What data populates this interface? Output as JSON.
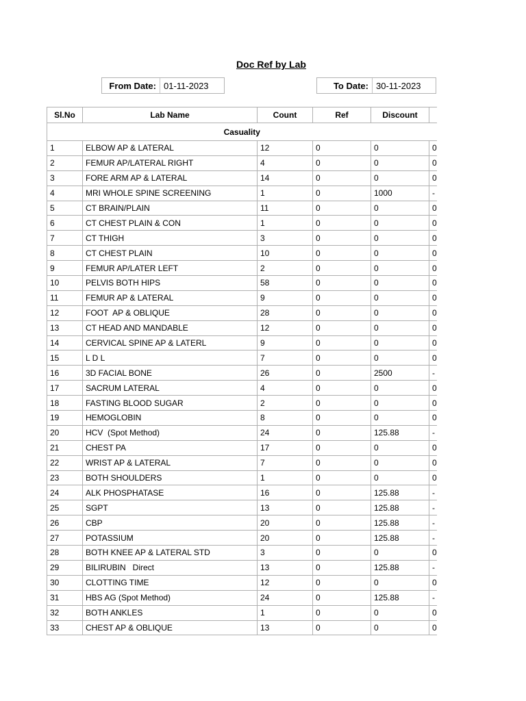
{
  "title": "Doc Ref by Lab",
  "filters": {
    "from_date_label": "From Date:",
    "from_date_value": "01-11-2023",
    "to_date_label": "To Date:",
    "to_date_value": "30-11-2023"
  },
  "table": {
    "columns": [
      "Sl.No",
      "Lab Name",
      "Count",
      "Ref",
      "Discount",
      ""
    ],
    "group_header": "Casuality",
    "rows": [
      [
        "1",
        "ELBOW AP & LATERAL",
        "12",
        "0",
        "0",
        "0"
      ],
      [
        "2",
        "FEMUR AP/LATERAL RIGHT",
        "4",
        "0",
        "0",
        "0"
      ],
      [
        "3",
        "FORE ARM AP & LATERAL",
        "14",
        "0",
        "0",
        "0"
      ],
      [
        "4",
        "MRI WHOLE SPINE SCREENING",
        "1",
        "0",
        "1000",
        "-"
      ],
      [
        "5",
        "CT BRAIN/PLAIN",
        "11",
        "0",
        "0",
        "0"
      ],
      [
        "6",
        "CT CHEST PLAIN & CON",
        "1",
        "0",
        "0",
        "0"
      ],
      [
        "7",
        "CT THIGH",
        "3",
        "0",
        "0",
        "0"
      ],
      [
        "8",
        "CT CHEST PLAIN",
        "10",
        "0",
        "0",
        "0"
      ],
      [
        "9",
        "FEMUR AP/LATER LEFT",
        "2",
        "0",
        "0",
        "0"
      ],
      [
        "10",
        "PELVIS BOTH HIPS",
        "58",
        "0",
        "0",
        "0"
      ],
      [
        "11",
        "FEMUR AP & LATERAL",
        "9",
        "0",
        "0",
        "0"
      ],
      [
        "12",
        "FOOT  AP & OBLIQUE",
        "28",
        "0",
        "0",
        "0"
      ],
      [
        "13",
        "CT HEAD AND MANDABLE",
        "12",
        "0",
        "0",
        "0"
      ],
      [
        "14",
        "CERVICAL SPINE AP & LATERL",
        "9",
        "0",
        "0",
        "0"
      ],
      [
        "15",
        "L D L",
        "7",
        "0",
        "0",
        "0"
      ],
      [
        "16",
        "3D FACIAL BONE",
        "26",
        "0",
        "2500",
        "-"
      ],
      [
        "17",
        "SACRUM LATERAL",
        "4",
        "0",
        "0",
        "0"
      ],
      [
        "18",
        "FASTING BLOOD SUGAR",
        "2",
        "0",
        "0",
        "0"
      ],
      [
        "19",
        "HEMOGLOBIN",
        "8",
        "0",
        "0",
        "0"
      ],
      [
        "20",
        "HCV  (Spot Method)",
        "24",
        "0",
        "125.88",
        "-"
      ],
      [
        "21",
        "CHEST PA",
        "17",
        "0",
        "0",
        "0"
      ],
      [
        "22",
        "WRIST AP & LATERAL",
        "7",
        "0",
        "0",
        "0"
      ],
      [
        "23",
        "BOTH SHOULDERS",
        "1",
        "0",
        "0",
        "0"
      ],
      [
        "24",
        "ALK PHOSPHATASE",
        "16",
        "0",
        "125.88",
        "-"
      ],
      [
        "25",
        "SGPT",
        "13",
        "0",
        "125.88",
        "-"
      ],
      [
        "26",
        "CBP",
        "20",
        "0",
        "125.88",
        "-"
      ],
      [
        "27",
        "POTASSIUM",
        "20",
        "0",
        "125.88",
        "-"
      ],
      [
        "28",
        "BOTH KNEE AP & LATERAL STD",
        "3",
        "0",
        "0",
        "0"
      ],
      [
        "29",
        "BILIRUBIN   Direct",
        "13",
        "0",
        "125.88",
        "-"
      ],
      [
        "30",
        "CLOTTING TIME",
        "12",
        "0",
        "0",
        "0"
      ],
      [
        "31",
        "HBS AG (Spot Method)",
        "24",
        "0",
        "125.88",
        "-"
      ],
      [
        "32",
        "BOTH ANKLES",
        "1",
        "0",
        "0",
        "0"
      ],
      [
        "33",
        "CHEST AP & OBLIQUE",
        "13",
        "0",
        "0",
        "0"
      ]
    ]
  },
  "colors": {
    "border": "#b0b0b0",
    "text": "#000000",
    "background": "#ffffff"
  }
}
